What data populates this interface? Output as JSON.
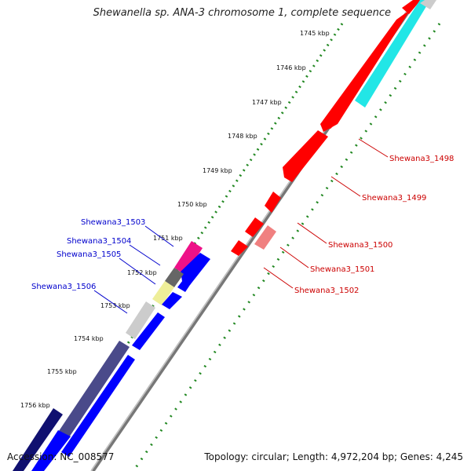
{
  "title": "Shewanella sp. ANA-3 chromosome 1, complete sequence",
  "accession_text": "Accession: NC_008577",
  "info_text": "Topology: circular; Length: 4,972,204 bp; Genes: 4,245",
  "ticks": [
    "1745 kbp",
    "1746 kbp",
    "1747 kbp",
    "1748 kbp",
    "1749 kbp",
    "1750 kbp",
    "1751 kbp",
    "1752 kbp",
    "1753 kbp",
    "1754 kbp",
    "1755 kbp",
    "1756 kbp"
  ],
  "gene_labels_forward": [
    "Shewana3_1498",
    "Shewana3_1499",
    "Shewana3_1500",
    "Shewana3_1501",
    "Shewana3_1502"
  ],
  "gene_labels_reverse": [
    "Shewana3_1503",
    "Shewana3_1504",
    "Shewana3_1505",
    "Shewana3_1506"
  ],
  "colors": {
    "forward_gene": "#ff0000",
    "forward_gene_light": "#f08080",
    "reverse_gene": "#0000ff",
    "forward_label": "#cc0000",
    "reverse_label": "#0000cc",
    "cyan_feature": "#22e6e6",
    "magenta_feature": "#ee1188",
    "yellow_feature": "#eeee99",
    "dark_gray_feature": "#666666",
    "light_gray_feature": "#cccccc",
    "slate_feature": "#4a4a8a",
    "navy_feature": "#101070",
    "backbone": "#888888",
    "tick_marks": "#228822"
  }
}
